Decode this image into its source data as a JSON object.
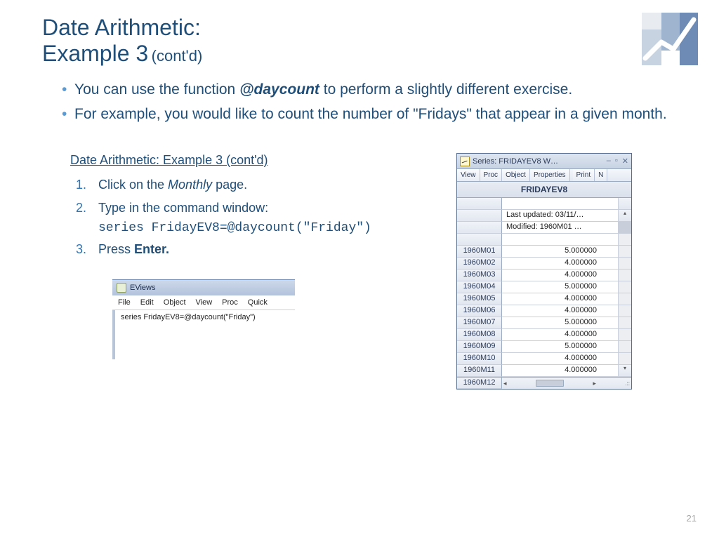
{
  "title": {
    "line1": "Date Arithmetic:",
    "line2": "Example 3",
    "contd": "(cont'd)"
  },
  "bullets": [
    {
      "pre": "You can use the function ",
      "em": "@daycount",
      "post": " to perform a slightly different exercise."
    },
    {
      "pre": "For example, you would like to count the number of \"Fridays\" that appear in a given month.",
      "em": "",
      "post": ""
    }
  ],
  "steps_heading": "Date Arithmetic: Example 3 (cont'd)",
  "steps": [
    {
      "num": "1.",
      "pre": "Click on the ",
      "it": "Monthly",
      "post": " page."
    },
    {
      "num": "2.",
      "pre": "Type in the command window:",
      "it": "",
      "post": ""
    }
  ],
  "code": "series FridayEV8=@daycount(\"Friday\")",
  "step3": {
    "num": "3.",
    "pre": " Press ",
    "bold": "Enter.",
    "post": ""
  },
  "cmd": {
    "title": "EViews",
    "menus": [
      "File",
      "Edit",
      "Object",
      "View",
      "Proc",
      "Quick"
    ],
    "input": "series FridayEV8=@daycount(\"Friday\")"
  },
  "series": {
    "title": "Series: FRIDAYEV8   W…",
    "toolbar": [
      "View",
      "Proc",
      "Object",
      "Properties",
      "Print",
      "N"
    ],
    "header": "FRIDAYEV8",
    "meta1": "Last updated: 03/11/…",
    "meta2": "Modified: 1960M01 …",
    "rows": [
      {
        "label": "1960M01",
        "value": "5.000000"
      },
      {
        "label": "1960M02",
        "value": "4.000000"
      },
      {
        "label": "1960M03",
        "value": "4.000000"
      },
      {
        "label": "1960M04",
        "value": "5.000000"
      },
      {
        "label": "1960M05",
        "value": "4.000000"
      },
      {
        "label": "1960M06",
        "value": "4.000000"
      },
      {
        "label": "1960M07",
        "value": "5.000000"
      },
      {
        "label": "1960M08",
        "value": "4.000000"
      },
      {
        "label": "1960M09",
        "value": "5.000000"
      },
      {
        "label": "1960M10",
        "value": "4.000000"
      },
      {
        "label": "1960M11",
        "value": "4.000000"
      }
    ],
    "lastRow": "1960M12"
  },
  "pageNum": "21",
  "colors": {
    "heading": "#1f4e79",
    "bullet": "#5b9bd5",
    "stepnum": "#2e75b6"
  }
}
